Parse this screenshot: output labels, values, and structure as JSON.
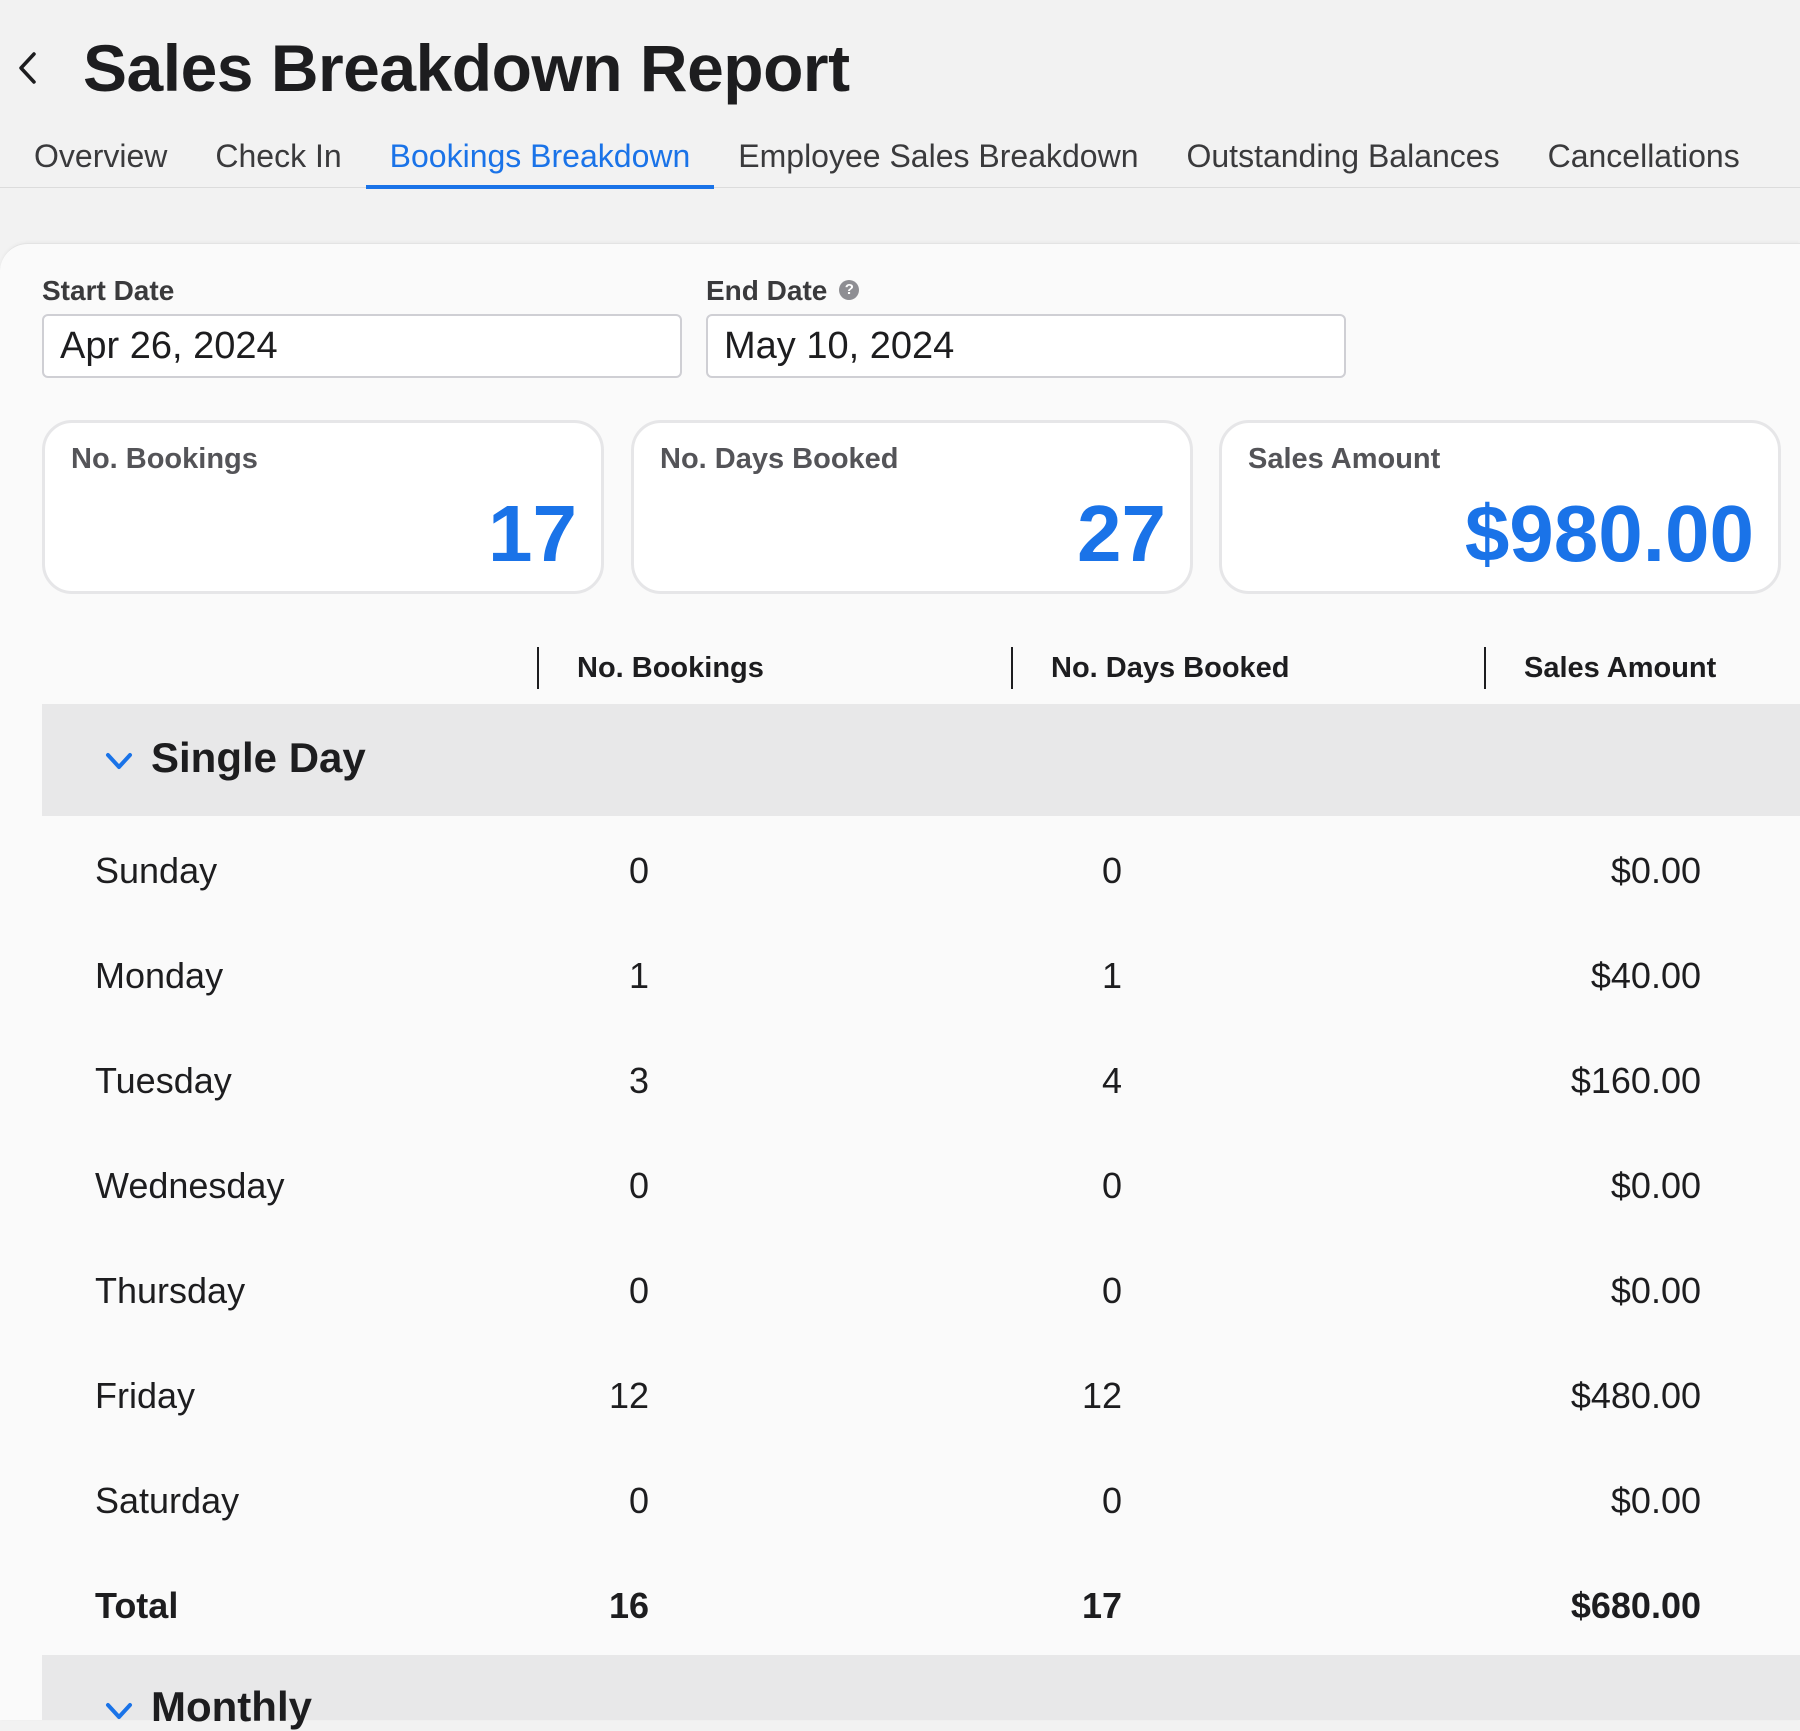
{
  "header": {
    "title": "Sales Breakdown Report",
    "tabs": [
      {
        "label": "Overview"
      },
      {
        "label": "Check In"
      },
      {
        "label": "Bookings Breakdown"
      },
      {
        "label": "Employee Sales Breakdown"
      },
      {
        "label": "Outstanding Balances"
      },
      {
        "label": "Cancellations"
      }
    ],
    "active_tab": "Bookings Breakdown"
  },
  "filters": {
    "start_date": {
      "label": "Start Date",
      "value": "Apr 26, 2024"
    },
    "end_date": {
      "label": "End Date",
      "value": "May 10, 2024",
      "help_icon": "question-circle-icon"
    }
  },
  "summary": {
    "bookings": {
      "label": "No. Bookings",
      "value": "17"
    },
    "days_booked": {
      "label": "No. Days Booked",
      "value": "27"
    },
    "sales_amount": {
      "label": "Sales Amount",
      "value": "$980.00"
    }
  },
  "table": {
    "columns": [
      "No. Bookings",
      "No. Days Booked",
      "Sales Amount"
    ],
    "groups": [
      {
        "title": "Single Day",
        "expanded": true,
        "rows": [
          {
            "label": "Sunday",
            "bookings": "0",
            "days": "0",
            "amount": "$0.00"
          },
          {
            "label": "Monday",
            "bookings": "1",
            "days": "1",
            "amount": "$40.00"
          },
          {
            "label": "Tuesday",
            "bookings": "3",
            "days": "4",
            "amount": "$160.00"
          },
          {
            "label": "Wednesday",
            "bookings": "0",
            "days": "0",
            "amount": "$0.00"
          },
          {
            "label": "Thursday",
            "bookings": "0",
            "days": "0",
            "amount": "$0.00"
          },
          {
            "label": "Friday",
            "bookings": "12",
            "days": "12",
            "amount": "$480.00"
          },
          {
            "label": "Saturday",
            "bookings": "0",
            "days": "0",
            "amount": "$0.00"
          }
        ],
        "total": {
          "label": "Total",
          "bookings": "16",
          "days": "17",
          "amount": "$680.00"
        }
      },
      {
        "title": "Monthly",
        "expanded": true
      }
    ]
  },
  "colors": {
    "accent": "#1a73e8",
    "group_header_bg": "#e8e8e9",
    "page_bg": "#f2f2f2"
  }
}
